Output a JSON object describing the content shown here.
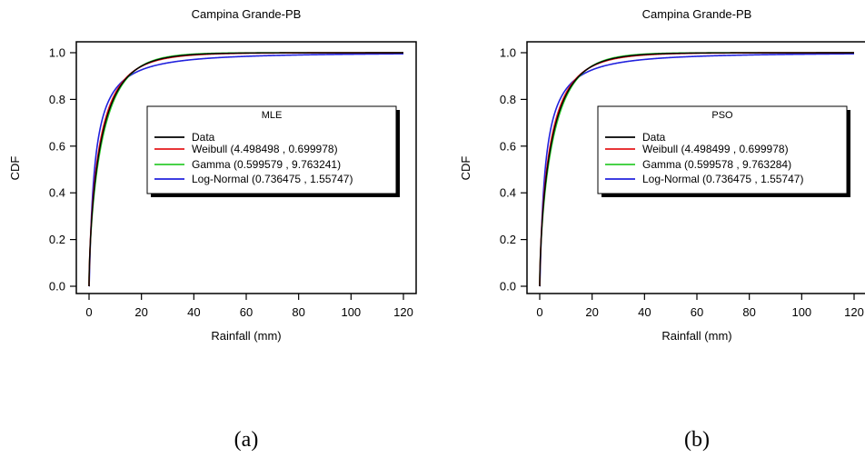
{
  "chart_data": [
    {
      "type": "line",
      "title": "Campina Grande-PB",
      "xlabel": "Rainfall (mm)",
      "ylabel": "CDF",
      "xlim": [
        0,
        120
      ],
      "ylim": [
        0.0,
        1.0
      ],
      "x_ticks": [
        "0",
        "20",
        "40",
        "60",
        "80",
        "100",
        "120"
      ],
      "y_ticks": [
        "0.0",
        "0.2",
        "0.4",
        "0.6",
        "0.8",
        "1.0"
      ],
      "legend_title": "MLE",
      "legend_position": "center-right",
      "grid": false,
      "series": [
        {
          "name": "Data",
          "label": "Data",
          "color": "#000000",
          "dist": "empirical"
        },
        {
          "name": "Weibull",
          "label": "Weibull (4.498498 , 0.699978)",
          "color": "#e41a1c",
          "dist": "weibull",
          "params": [
            4.498498,
            0.699978
          ]
        },
        {
          "name": "Gamma",
          "label": "Gamma (0.599579 , 9.763241)",
          "color": "#2ecc2e",
          "dist": "gamma",
          "params": [
            0.599579,
            9.763241
          ]
        },
        {
          "name": "Log-Normal",
          "label": "Log-Normal (0.736475 , 1.55747)",
          "color": "#2222dd",
          "dist": "lognormal",
          "params": [
            0.736475,
            1.55747
          ]
        }
      ],
      "caption": "(a)"
    },
    {
      "type": "line",
      "title": "Campina Grande-PB",
      "xlabel": "Rainfall (mm)",
      "ylabel": "CDF",
      "xlim": [
        0,
        120
      ],
      "ylim": [
        0.0,
        1.0
      ],
      "x_ticks": [
        "0",
        "20",
        "40",
        "60",
        "80",
        "100",
        "120"
      ],
      "y_ticks": [
        "0.0",
        "0.2",
        "0.4",
        "0.6",
        "0.8",
        "1.0"
      ],
      "legend_title": "PSO",
      "legend_position": "center-right",
      "grid": false,
      "series": [
        {
          "name": "Data",
          "label": "Data",
          "color": "#000000",
          "dist": "empirical"
        },
        {
          "name": "Weibull",
          "label": "Weibull (4.498499 , 0.699978)",
          "color": "#e41a1c",
          "dist": "weibull",
          "params": [
            4.498499,
            0.699978
          ]
        },
        {
          "name": "Gamma",
          "label": "Gamma (0.599578 , 9.763284)",
          "color": "#2ecc2e",
          "dist": "gamma",
          "params": [
            0.599578,
            9.763284
          ]
        },
        {
          "name": "Log-Normal",
          "label": "Log-Normal (0.736475 , 1.55747)",
          "color": "#2222dd",
          "dist": "lognormal",
          "params": [
            0.736475,
            1.55747
          ]
        }
      ],
      "caption": "(b)"
    }
  ]
}
